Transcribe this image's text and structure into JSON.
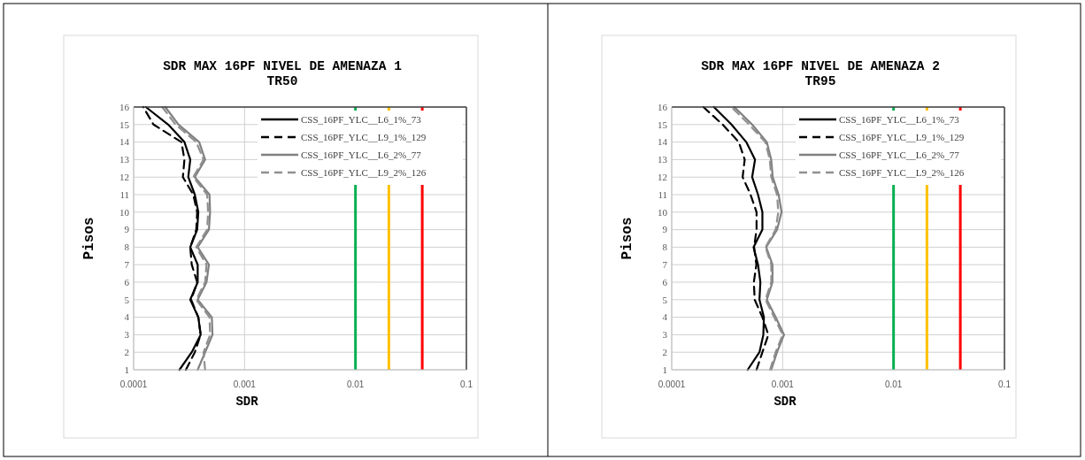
{
  "chart_data": [
    {
      "type": "line",
      "title": "SDR MAX 16PF NIVEL DE AMENAZA 1",
      "subtitle": "TR50",
      "xlabel": "SDR",
      "ylabel": "Pisos",
      "log": "x",
      "grid": true,
      "legend": "top right",
      "xlim": [
        0.0001,
        0.1
      ],
      "xticks": [
        0.0001,
        0.001,
        0.01,
        0.1
      ],
      "ylim": [
        1,
        16
      ],
      "yticks": [
        1,
        2,
        3,
        4,
        5,
        6,
        7,
        8,
        9,
        10,
        11,
        12,
        13,
        14,
        15,
        16
      ],
      "series": [
        {
          "name": "CSS_16PF_YLC__L6_1%_73",
          "color": "#000000",
          "line_style": "solid",
          "x": [
            0.000259,
            0.000334,
            0.000402,
            0.000383,
            0.000324,
            0.000378,
            0.000378,
            0.000324,
            0.000374,
            0.000383,
            0.000356,
            0.000311,
            0.000324,
            0.000287,
            0.000205,
            0.000129
          ],
          "values": [
            1,
            2,
            3,
            4,
            5,
            6,
            7,
            8,
            9,
            10,
            11,
            12,
            13,
            14,
            15,
            16
          ]
        },
        {
          "name": "CSS_16PF_YLC__L9_1%_129",
          "color": "#000000",
          "line_style": "dashed",
          "x": [
            0.000296,
            0.000356,
            0.000402,
            0.000383,
            0.00033,
            0.000374,
            0.000334,
            0.000324,
            0.000367,
            0.000374,
            0.000345,
            0.000278,
            0.000287,
            0.00027,
            0.000151,
            0.000122
          ],
          "values": [
            1,
            2,
            3,
            4,
            5,
            6,
            7,
            8,
            9,
            10,
            11,
            12,
            13,
            14,
            15,
            16
          ]
        },
        {
          "name": "CSS_16PF_YLC__L6_2%_77",
          "color": "#808080",
          "line_style": "solid",
          "x": [
            0.000378,
            0.000441,
            0.000514,
            0.000507,
            0.000378,
            0.000454,
            0.000477,
            0.000378,
            0.000477,
            0.000489,
            0.000483,
            0.000356,
            0.000441,
            0.00039,
            0.000254,
            0.000193
          ],
          "values": [
            1,
            2,
            3,
            4,
            5,
            6,
            7,
            8,
            9,
            10,
            11,
            12,
            13,
            14,
            15,
            16
          ]
        },
        {
          "name": "CSS_16PF_YLC__L9_2%_126",
          "color": "#909090",
          "line_style": "dashed",
          "x": [
            0.000441,
            0.000427,
            0.000489,
            0.000483,
            0.000367,
            0.000441,
            0.000454,
            0.000367,
            0.00046,
            0.000469,
            0.00046,
            0.000345,
            0.000427,
            0.000367,
            0.000239,
            0.000181
          ],
          "values": [
            1,
            2,
            3,
            4,
            5,
            6,
            7,
            8,
            9,
            10,
            11,
            12,
            13,
            14,
            15,
            16
          ]
        }
      ],
      "ref_lines": [
        {
          "axis": "x",
          "value": 0.01,
          "color": "#00b050"
        },
        {
          "axis": "x",
          "value": 0.02,
          "color": "#ffc000"
        },
        {
          "axis": "x",
          "value": 0.04,
          "color": "#ff0000"
        }
      ]
    },
    {
      "type": "line",
      "title": "SDR MAX 16PF NIVEL DE AMENAZA 2",
      "subtitle": "TR95",
      "xlabel": "SDR",
      "ylabel": "Pisos",
      "log": "x",
      "grid": true,
      "legend": "top right",
      "xlim": [
        0.0001,
        0.1
      ],
      "xticks": [
        0.0001,
        0.001,
        0.01,
        0.1
      ],
      "ylim": [
        1,
        16
      ],
      "yticks": [
        1,
        2,
        3,
        4,
        5,
        6,
        7,
        8,
        9,
        10,
        11,
        12,
        13,
        14,
        15,
        16
      ],
      "series": [
        {
          "name": "CSS_16PF_YLC__L6_1%_73",
          "color": "#000000",
          "line_style": "solid",
          "x": [
            0.000484,
            0.000618,
            0.00067,
            0.000678,
            0.000618,
            0.00063,
            0.0006,
            0.000547,
            0.000657,
            0.000657,
            0.0006,
            0.000531,
            0.000564,
            0.00047,
            0.000346,
            0.00024
          ],
          "values": [
            1,
            2,
            3,
            4,
            5,
            6,
            7,
            8,
            9,
            10,
            11,
            12,
            13,
            14,
            15,
            16
          ]
        },
        {
          "name": "CSS_16PF_YLC__L9_1%_129",
          "color": "#000000",
          "line_style": "dashed",
          "x": [
            0.000582,
            0.000657,
            0.000743,
            0.000657,
            0.00056,
            0.00055,
            0.00058,
            0.000553,
            0.000582,
            0.000582,
            0.000514,
            0.000436,
            0.000455,
            0.000403,
            0.000288,
            0.000193
          ],
          "values": [
            1,
            2,
            3,
            4,
            5,
            6,
            7,
            8,
            9,
            10,
            11,
            12,
            13,
            14,
            15,
            16
          ]
        },
        {
          "name": "CSS_16PF_YLC__L6_2%_77",
          "color": "#808080",
          "line_style": "solid",
          "x": [
            0.00079,
            0.00089,
            0.00103,
            0.000865,
            0.00072,
            0.00081,
            0.00081,
            0.000711,
            0.000891,
            0.000978,
            0.00092,
            0.000814,
            0.000789,
            0.00072,
            0.000531,
            0.000367
          ],
          "values": [
            1,
            2,
            3,
            4,
            5,
            6,
            7,
            8,
            9,
            10,
            11,
            12,
            13,
            14,
            15,
            16
          ]
        },
        {
          "name": "CSS_16PF_YLC__L9_2%_126",
          "color": "#909090",
          "line_style": "dashed",
          "x": [
            0.00077,
            0.000865,
            0.001,
            0.000839,
            0.0007,
            0.00079,
            0.00079,
            0.0007,
            0.000865,
            0.000914,
            0.00089,
            0.00079,
            0.000766,
            0.000698,
            0.000499,
            0.000346
          ],
          "values": [
            1,
            2,
            3,
            4,
            5,
            6,
            7,
            8,
            9,
            10,
            11,
            12,
            13,
            14,
            15,
            16
          ]
        }
      ],
      "ref_lines": [
        {
          "axis": "x",
          "value": 0.01,
          "color": "#00b050"
        },
        {
          "axis": "x",
          "value": 0.02,
          "color": "#ffc000"
        },
        {
          "axis": "x",
          "value": 0.04,
          "color": "#ff0000"
        }
      ]
    }
  ]
}
